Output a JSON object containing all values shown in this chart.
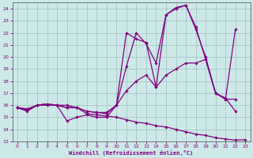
{
  "xlabel": "Windchill (Refroidissement éolien,°C)",
  "background_color": "#cde8e8",
  "grid_color": "#a0bfbf",
  "line_color": "#800080",
  "xlim": [
    -0.5,
    23.5
  ],
  "ylim": [
    13,
    24.5
  ],
  "yticks": [
    13,
    14,
    15,
    16,
    17,
    18,
    19,
    20,
    21,
    22,
    23,
    24
  ],
  "xticks": [
    0,
    1,
    2,
    3,
    4,
    5,
    6,
    7,
    8,
    9,
    10,
    11,
    12,
    13,
    14,
    15,
    16,
    17,
    18,
    19,
    20,
    21,
    22,
    23
  ],
  "series": [
    {
      "x": [
        0,
        1,
        2,
        3,
        4,
        5,
        6,
        7,
        8,
        9,
        10,
        11,
        12,
        13,
        14,
        15,
        16,
        17,
        18,
        19,
        20,
        21,
        22,
        23
      ],
      "y": [
        15.8,
        15.5,
        16.0,
        16.0,
        16.0,
        16.0,
        15.8,
        15.3,
        15.2,
        15.1,
        15.0,
        14.8,
        14.6,
        14.5,
        14.3,
        14.2,
        14.0,
        13.8,
        13.6,
        13.5,
        13.3,
        13.2,
        13.1,
        13.15
      ]
    },
    {
      "x": [
        0,
        1,
        2,
        3,
        4,
        5,
        6,
        7,
        8,
        9,
        10,
        11,
        12,
        13,
        14,
        15,
        16,
        17,
        18,
        19,
        20,
        21,
        22
      ],
      "y": [
        15.8,
        15.7,
        16.0,
        16.1,
        16.0,
        14.7,
        15.0,
        15.2,
        15.0,
        15.0,
        16.0,
        22.0,
        21.5,
        21.2,
        17.5,
        23.5,
        24.1,
        24.3,
        22.5,
        19.8,
        17.0,
        16.6,
        15.5
      ]
    },
    {
      "x": [
        0,
        1,
        2,
        3,
        4,
        5,
        6,
        7,
        8,
        9,
        10,
        11,
        12,
        13,
        14,
        15,
        16,
        17,
        18,
        19,
        20,
        21,
        22
      ],
      "y": [
        15.8,
        15.6,
        16.0,
        16.1,
        16.0,
        15.8,
        15.8,
        15.5,
        15.4,
        15.3,
        16.0,
        19.2,
        22.0,
        21.1,
        19.5,
        23.5,
        24.0,
        24.3,
        22.3,
        20.0,
        17.0,
        16.5,
        22.3
      ]
    },
    {
      "x": [
        0,
        1,
        2,
        3,
        4,
        5,
        6,
        7,
        8,
        9,
        10,
        11,
        12,
        13,
        14,
        15,
        16,
        17,
        18,
        19,
        20,
        21,
        22
      ],
      "y": [
        15.8,
        15.6,
        16.0,
        16.1,
        16.0,
        15.8,
        15.8,
        15.5,
        15.4,
        15.4,
        16.0,
        17.2,
        18.0,
        18.5,
        17.5,
        18.5,
        19.0,
        19.5,
        19.5,
        19.8,
        17.0,
        16.5,
        16.5
      ]
    }
  ]
}
